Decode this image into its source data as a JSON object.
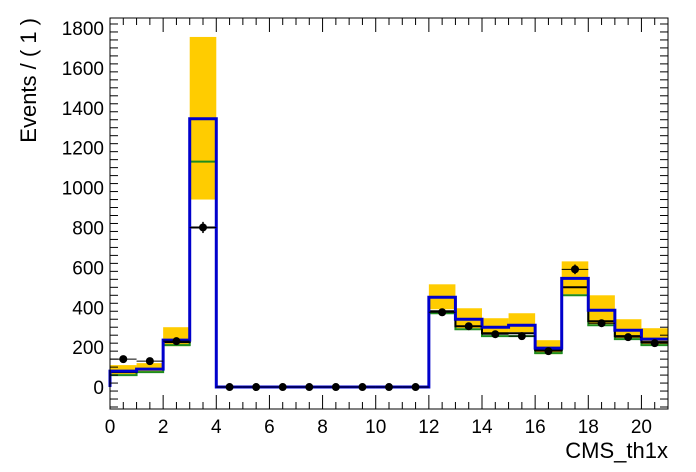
{
  "chart_data": {
    "type": "bar",
    "xlabel": "CMS_th1x",
    "ylabel": "Events / ( 1 )",
    "xlim": [
      0,
      21
    ],
    "ylim": [
      -110,
      1850
    ],
    "x_ticks": [
      0,
      2,
      4,
      6,
      8,
      10,
      12,
      14,
      16,
      18,
      20
    ],
    "y_ticks": [
      0,
      200,
      400,
      600,
      800,
      1000,
      1200,
      1400,
      1600,
      1800
    ],
    "bin_edges": [
      0,
      1,
      2,
      3,
      4,
      5,
      6,
      7,
      8,
      9,
      10,
      11,
      12,
      13,
      14,
      15,
      16,
      17,
      18,
      19,
      20,
      21
    ],
    "series": [
      {
        "role": "uncertainty-band",
        "color": "#ffcc00",
        "low": [
          65,
          75,
          205,
          940,
          0,
          0,
          0,
          0,
          0,
          0,
          0,
          0,
          390,
          295,
          270,
          275,
          165,
          465,
          315,
          245,
          215
        ],
        "high": [
          110,
          120,
          300,
          1755,
          0,
          0,
          0,
          0,
          0,
          0,
          0,
          0,
          515,
          395,
          345,
          370,
          235,
          630,
          460,
          340,
          295
        ]
      },
      {
        "role": "step-green",
        "color": "#1e8c1e",
        "values": [
          60,
          75,
          210,
          1130,
          0,
          0,
          0,
          0,
          0,
          0,
          0,
          0,
          370,
          290,
          255,
          255,
          170,
          460,
          310,
          240,
          210
        ]
      },
      {
        "role": "step-black",
        "color": "#000000",
        "values": [
          75,
          90,
          225,
          800,
          0,
          0,
          0,
          0,
          0,
          0,
          0,
          0,
          380,
          305,
          270,
          270,
          185,
          500,
          330,
          255,
          225
        ]
      },
      {
        "role": "step-blue",
        "color": "#0000cc",
        "values": [
          80,
          90,
          235,
          1345,
          0,
          0,
          0,
          0,
          0,
          0,
          0,
          0,
          450,
          340,
          300,
          310,
          195,
          545,
          385,
          285,
          240
        ]
      }
    ],
    "points": {
      "role": "data",
      "color": "#000000",
      "x": [
        0.5,
        1.5,
        2.5,
        3.5,
        4.5,
        5.5,
        6.5,
        7.5,
        8.5,
        9.5,
        10.5,
        11.5,
        12.5,
        13.5,
        14.5,
        15.5,
        16.5,
        17.5,
        18.5,
        19.5,
        20.5
      ],
      "y": [
        140,
        130,
        230,
        800,
        0,
        0,
        0,
        0,
        0,
        0,
        0,
        0,
        375,
        305,
        265,
        255,
        180,
        590,
        320,
        250,
        220
      ],
      "err": [
        12,
        12,
        15,
        28,
        1,
        1,
        1,
        1,
        1,
        1,
        1,
        1,
        19,
        17,
        16,
        16,
        13,
        24,
        18,
        16,
        15
      ]
    }
  }
}
